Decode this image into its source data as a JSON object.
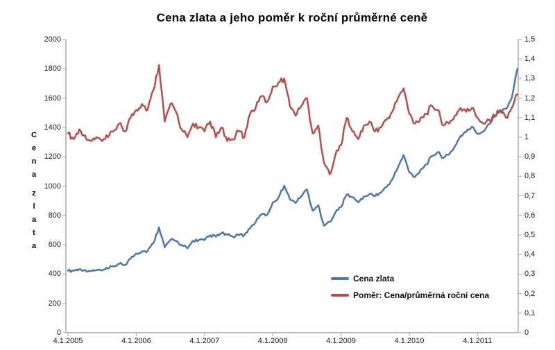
{
  "title": "Cena zlata a jeho poměr k roční průměrné ceně",
  "y_axis_left": {
    "label": "Cena zlata",
    "ticks": [
      "0",
      "200",
      "400",
      "600",
      "800",
      "1000",
      "1200",
      "1400",
      "1600",
      "1800",
      "2000"
    ]
  },
  "y_axis_right": {
    "ticks": [
      "0",
      "0,1",
      "0,2",
      "0,3",
      "0,4",
      "0,5",
      "0,6",
      "0,7",
      "0,8",
      "0,9",
      "1",
      "1,1",
      "1,2",
      "1,3",
      "1,4",
      "1,5"
    ]
  },
  "x_axis": {
    "tick_labels": [
      "4.1.2005",
      "4.1.2006",
      "4.1.2007",
      "4.1.2008",
      "4.1.2009",
      "4.1.2010",
      "4.1.2011"
    ]
  },
  "colors": {
    "gold_line": "#4A77B4",
    "ratio_line": "#BE4B47",
    "axis": "#a6a6a6",
    "text": "#1a1a1a"
  },
  "chart_data": {
    "type": "line",
    "title": "Cena zlata a jeho poměr k roční průměrné ceně",
    "grid": false,
    "legend_position": "inside-bottom-right",
    "x_start_label": "4.1.2005",
    "x_step": "1 month",
    "x_tick_labels": [
      "4.1.2005",
      "4.1.2006",
      "4.1.2007",
      "4.1.2008",
      "4.1.2009",
      "4.1.2010",
      "4.1.2011"
    ],
    "left_axis": {
      "label": "Cena zlata",
      "range": [
        0,
        2000
      ],
      "tick_step": 200
    },
    "right_axis": {
      "label": "",
      "range": [
        0,
        1.5
      ],
      "tick_step": 0.1
    },
    "series": [
      {
        "name": "Cena zlata",
        "axis": "left",
        "color": "#4A77B4",
        "values": [
          422,
          423,
          434,
          429,
          421,
          428,
          424,
          437,
          452,
          470,
          463,
          505,
          540,
          555,
          557,
          610,
          718,
          583,
          633,
          625,
          599,
          575,
          627,
          632,
          631,
          664,
          655,
          679,
          667,
          655,
          665,
          665,
          712,
          755,
          806,
          803,
          889,
          922,
          1003,
          910,
          885,
          930,
          978,
          833,
          870,
          730,
          755,
          820,
          858,
          943,
          924,
          890,
          928,
          946,
          934,
          955,
          995,
          1045,
          1127,
          1212,
          1095,
          1062,
          1113,
          1148,
          1205,
          1232,
          1193,
          1215,
          1271,
          1342,
          1370,
          1405,
          1356,
          1372,
          1424,
          1473,
          1510,
          1528,
          1600,
          1800
        ]
      },
      {
        "name": "Poměr: Cena/průměrná roční cena",
        "axis": "right",
        "color": "#BE4B47",
        "values": [
          1.02,
          0.99,
          1.04,
          1.01,
          0.98,
          1.0,
          0.98,
          1.0,
          1.03,
          1.07,
          1.03,
          1.1,
          1.14,
          1.17,
          1.14,
          1.24,
          1.37,
          1.08,
          1.17,
          1.13,
          1.04,
          1.0,
          1.07,
          1.05,
          1.03,
          1.08,
          1.0,
          1.05,
          0.98,
          0.99,
          1.03,
          1.0,
          1.12,
          1.15,
          1.21,
          1.18,
          1.26,
          1.28,
          1.3,
          1.16,
          1.11,
          1.16,
          1.2,
          1.02,
          1.06,
          0.87,
          0.81,
          0.91,
          0.96,
          1.1,
          1.03,
          0.99,
          1.06,
          1.08,
          1.03,
          1.05,
          1.09,
          1.13,
          1.2,
          1.25,
          1.12,
          1.07,
          1.1,
          1.12,
          1.16,
          1.14,
          1.06,
          1.07,
          1.11,
          1.15,
          1.13,
          1.15,
          1.1,
          1.07,
          1.09,
          1.11,
          1.14,
          1.1,
          1.15,
          1.22
        ]
      }
    ]
  }
}
